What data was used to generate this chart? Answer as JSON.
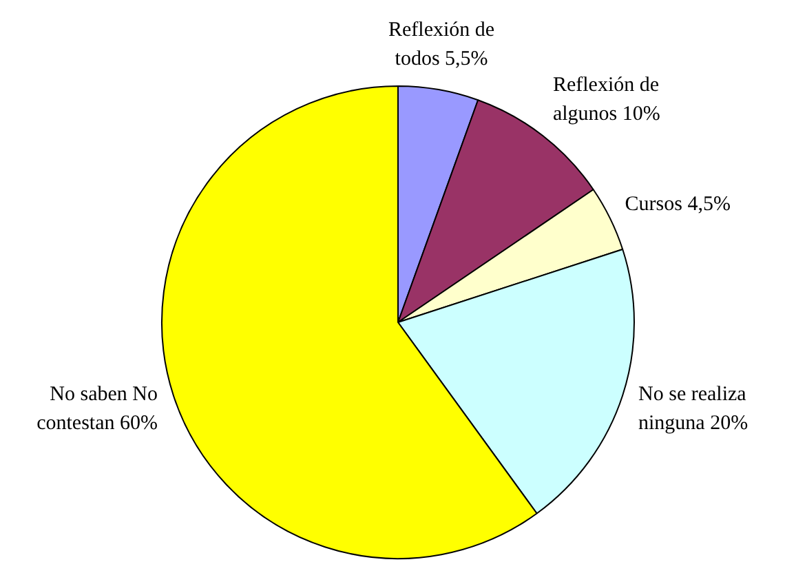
{
  "chart_data": {
    "type": "pie",
    "categories": [
      "Reflexión de todos",
      "Reflexión de algunos",
      "Cursos",
      "No se realiza ninguna",
      "No saben No contestan"
    ],
    "values": [
      5.5,
      10,
      4.5,
      20,
      60
    ],
    "colors": [
      "#9999ff",
      "#993366",
      "#ffffcc",
      "#ccffff",
      "#ffff00"
    ],
    "value_labels": [
      "5,5%",
      "10%",
      "4,5%",
      "20%",
      "60%"
    ],
    "legend": false
  }
}
